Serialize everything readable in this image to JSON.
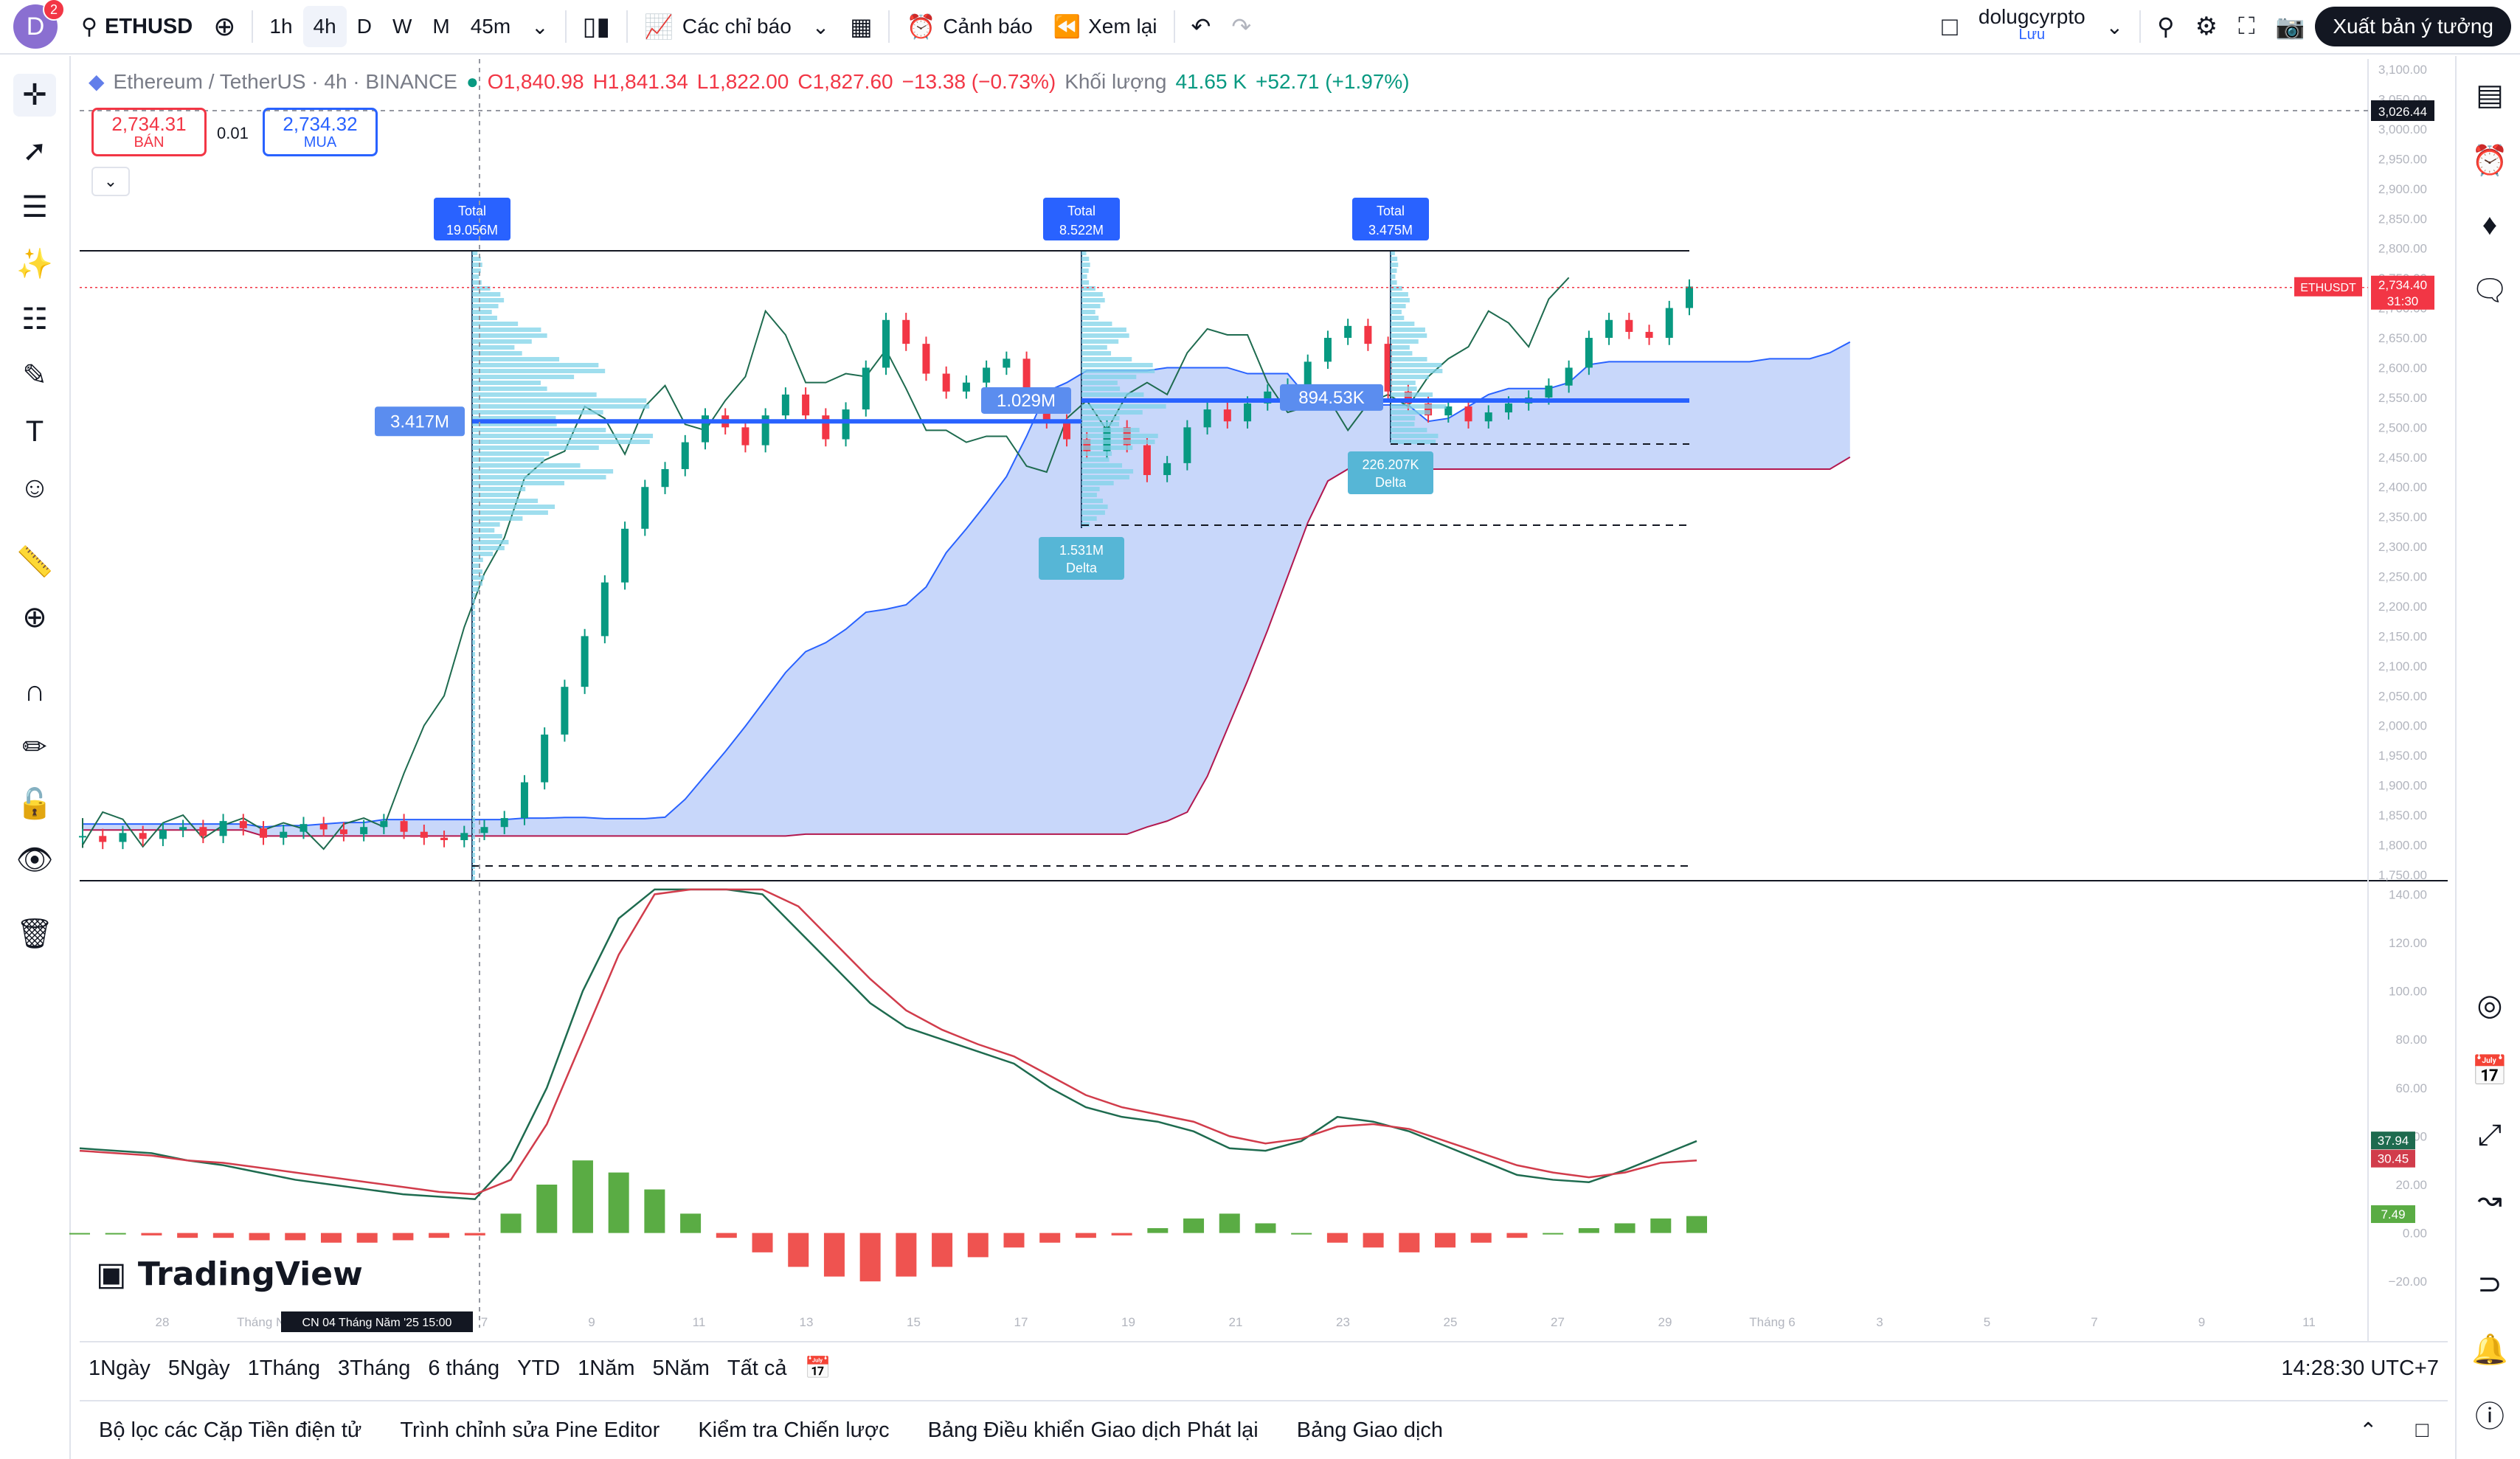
{
  "header": {
    "avatar_letter": "D",
    "notification_count": "2",
    "symbol": "ETHUSD",
    "timeframes": [
      "1h",
      "4h",
      "D",
      "W",
      "M",
      "45m"
    ],
    "active_timeframe": "4h",
    "indicators_label": "Các chỉ báo",
    "alert_label": "Cảnh báo",
    "replay_label": "Xem lại",
    "username": "dolugcyrpto",
    "save_label": "Lưu",
    "publish_label": "Xuất bản ý tưởng"
  },
  "legend": {
    "title": "Ethereum / TetherUS · 4h · BINANCE",
    "open": "O1,840.98",
    "high": "H1,841.34",
    "low": "L1,822.00",
    "close": "C1,827.60",
    "change": "−13.38 (−0.73%)",
    "volume_label": "Khối lượng",
    "volume_value": "41.65 K",
    "volume_change": "+52.71 (+1.97%)"
  },
  "trade": {
    "sell_price": "2,734.31",
    "sell_label": "BÁN",
    "spread": "0.01",
    "buy_price": "2,734.32",
    "buy_label": "MUA"
  },
  "chart_data": {
    "type": "candlestick",
    "instrument": "Ethereum / TetherUS",
    "price_axis": [
      "3,100.00",
      "3,050.00",
      "3,000.00",
      "2,950.00",
      "2,900.00",
      "2,850.00",
      "2,800.00",
      "2,750.00",
      "2,700.00",
      "2,650.00",
      "2,600.00",
      "2,550.00",
      "2,500.00",
      "2,450.00",
      "2,400.00",
      "2,350.00",
      "2,300.00",
      "2,250.00",
      "2,200.00",
      "2,150.00",
      "2,100.00",
      "2,050.00",
      "2,000.00",
      "1,950.00",
      "1,900.00",
      "1,850.00",
      "1,800.00",
      "1,750.00"
    ],
    "ylim": [
      1740,
      3110
    ],
    "x_ticks": [
      "28",
      "Tháng Năm",
      "CN 04 Tháng Năm '25  15:00",
      "7",
      "9",
      "11",
      "13",
      "15",
      "17",
      "19",
      "21",
      "23",
      "25",
      "27",
      "29",
      "Tháng 6",
      "3",
      "5",
      "7",
      "9",
      "11"
    ],
    "current_price_label": "ETHUSDT",
    "current_price": "2,734.40",
    "countdown": "31:30",
    "crosshair_price": "3,026.44",
    "closes": [
      1815,
      1805,
      1820,
      1810,
      1825,
      1830,
      1815,
      1840,
      1828,
      1812,
      1822,
      1835,
      1826,
      1818,
      1830,
      1840,
      1822,
      1812,
      1808,
      1820,
      1830,
      1845,
      1905,
      1985,
      2065,
      2150,
      2240,
      2330,
      2400,
      2430,
      2475,
      2520,
      2500,
      2470,
      2520,
      2555,
      2520,
      2480,
      2530,
      2600,
      2680,
      2640,
      2590,
      2560,
      2575,
      2600,
      2615,
      2550,
      2510,
      2480,
      2460,
      2500,
      2470,
      2420,
      2440,
      2500,
      2530,
      2510,
      2540,
      2560,
      2570,
      2610,
      2650,
      2670,
      2640,
      2560,
      2540,
      2520,
      2535,
      2510,
      2525,
      2540,
      2550,
      2570,
      2600,
      2650,
      2680,
      2660,
      2650,
      2700,
      2736
    ],
    "volume_profiles": [
      {
        "total_label": "Total",
        "total": "19.056M",
        "poc": "3.417M"
      },
      {
        "total_label": "Total",
        "total": "8.522M",
        "poc": "1.029M",
        "delta": "1.531M",
        "delta_label": "Delta"
      },
      {
        "total_label": "Total",
        "total": "3.475M",
        "poc": "894.53K",
        "delta": "226.207K",
        "delta_label": "Delta"
      }
    ],
    "oscillator": {
      "axis": [
        "140.00",
        "120.00",
        "100.00",
        "80.00",
        "60.00",
        "40.00",
        "20.00",
        "0.00",
        "−20.00"
      ],
      "ylim": [
        -30,
        145
      ],
      "value1": "37.94",
      "value2": "30.45",
      "histogram_value": "7.49",
      "line1": [
        35,
        34,
        33,
        30,
        28,
        25,
        22,
        20,
        18,
        16,
        15,
        14,
        30,
        60,
        100,
        130,
        150,
        160,
        150,
        140,
        125,
        110,
        95,
        85,
        80,
        75,
        70,
        60,
        52,
        48,
        46,
        42,
        35,
        34,
        38,
        48,
        46,
        42,
        36,
        30,
        24,
        22,
        21,
        26,
        32,
        38
      ],
      "line2": [
        34,
        33,
        32,
        30,
        29,
        27,
        25,
        23,
        21,
        19,
        17,
        16,
        22,
        45,
        80,
        115,
        140,
        155,
        155,
        148,
        135,
        120,
        105,
        92,
        84,
        78,
        73,
        65,
        57,
        52,
        49,
        46,
        40,
        37,
        39,
        44,
        45,
        43,
        38,
        33,
        28,
        25,
        23,
        25,
        29,
        30
      ],
      "histogram": [
        0,
        0,
        -1,
        -2,
        -2,
        -3,
        -3,
        -4,
        -4,
        -3,
        -2,
        -1,
        8,
        20,
        30,
        25,
        18,
        8,
        -2,
        -8,
        -14,
        -18,
        -20,
        -18,
        -14,
        -10,
        -6,
        -4,
        -2,
        -1,
        2,
        6,
        8,
        4,
        0,
        -4,
        -6,
        -8,
        -6,
        -4,
        -2,
        0,
        2,
        4,
        6,
        7
      ]
    }
  },
  "range": {
    "items": [
      "1Ngày",
      "5Ngày",
      "1Tháng",
      "3Tháng",
      "6 tháng",
      "YTD",
      "1Năm",
      "5Năm",
      "Tất cả"
    ],
    "time": "14:28:30 UTC+7"
  },
  "bottom_tabs": [
    "Bộ lọc các Cặp Tiền điện tử",
    "Trình chỉnh sửa Pine Editor",
    "Kiểm tra Chiến lược",
    "Bảng Điều khiển Giao dịch Phát lại",
    "Bảng Giao dịch"
  ],
  "brand": "TradingView",
  "colors": {
    "up": "#089981",
    "down": "#f23645",
    "accent": "#2962ff",
    "cloud_up": "#9bb6f5",
    "cloud_down": "#f5a3b3",
    "profile": "#7fd3e8"
  }
}
